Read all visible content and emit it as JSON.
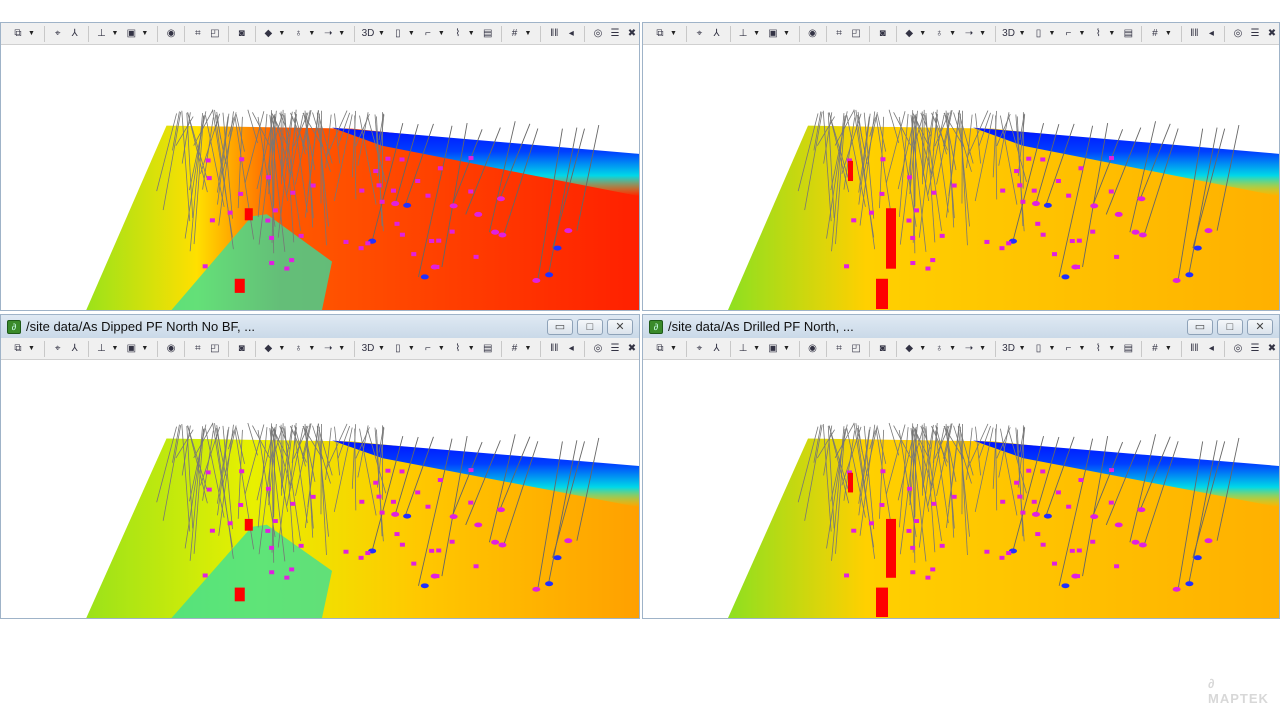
{
  "panels": [
    {
      "id": "top-left",
      "title": null,
      "scheme": "red"
    },
    {
      "id": "top-right",
      "title": null,
      "scheme": "yellow"
    },
    {
      "id": "bottom-left",
      "title": "/site data/As Dipped PF North No BF, ...",
      "scheme": "mixed"
    },
    {
      "id": "bottom-right",
      "title": "/site data/As Drilled PF North, ...",
      "scheme": "yellow"
    }
  ],
  "window_buttons": {
    "minimize": "▭",
    "maximize": "□",
    "close": "✕"
  },
  "toolbar": [
    {
      "icon": "view-cube-icon",
      "glyph": "⧉",
      "dropdown": true
    },
    {
      "sep": true
    },
    {
      "icon": "camera-look-icon",
      "glyph": "⌖"
    },
    {
      "icon": "axis-icon",
      "glyph": "⅄"
    },
    {
      "sep": true
    },
    {
      "icon": "elevation-icon",
      "glyph": "⊥",
      "dropdown": true
    },
    {
      "icon": "layers-icon",
      "glyph": "▣",
      "dropdown": true
    },
    {
      "sep": true
    },
    {
      "icon": "globe-select-icon",
      "glyph": "◉"
    },
    {
      "sep": true
    },
    {
      "icon": "zoom-extents-icon",
      "glyph": "⌗"
    },
    {
      "icon": "zoom-window-icon",
      "glyph": "◰"
    },
    {
      "sep": true
    },
    {
      "icon": "screenshot-icon",
      "glyph": "◙"
    },
    {
      "sep": true
    },
    {
      "icon": "shading-icon",
      "glyph": "◆",
      "dropdown": true
    },
    {
      "icon": "lights-icon",
      "glyph": "♁",
      "dropdown": true
    },
    {
      "icon": "arrow-icon",
      "glyph": "➝",
      "dropdown": true
    },
    {
      "sep": true
    },
    {
      "icon": "3d-mode-icon",
      "glyph": "3D",
      "dropdown": true
    },
    {
      "icon": "scale-icon",
      "glyph": "▯",
      "dropdown": true
    },
    {
      "icon": "section-icon",
      "glyph": "⌐",
      "dropdown": true
    },
    {
      "icon": "profile-icon",
      "glyph": "⌇",
      "dropdown": true
    },
    {
      "icon": "properties-icon",
      "glyph": "▤"
    },
    {
      "sep": true
    },
    {
      "icon": "grid-icon",
      "glyph": "#",
      "dropdown": true
    },
    {
      "sep": true
    },
    {
      "icon": "drillholes-icon",
      "glyph": "‖‖"
    },
    {
      "icon": "speaker-icon",
      "glyph": "◂"
    },
    {
      "sep": true
    },
    {
      "icon": "target-icon",
      "glyph": "◎"
    },
    {
      "icon": "legend-list-icon",
      "glyph": "☰"
    },
    {
      "icon": "close-view-icon",
      "glyph": "✖"
    }
  ],
  "logo": "MAPTEK",
  "colors": {
    "red": "#ff2a00",
    "yellow": "#ffc400",
    "green": "#66dd22",
    "blue": "#0010ff",
    "cyan": "#00e0e0"
  }
}
